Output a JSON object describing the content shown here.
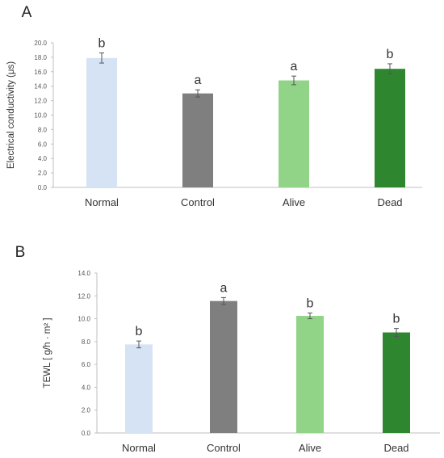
{
  "chart_data": [
    {
      "type": "bar",
      "panel": "A",
      "categories": [
        "Normal",
        "Control",
        "Alive",
        "Dead"
      ],
      "values": [
        17.9,
        13.0,
        14.8,
        16.4
      ],
      "errors": [
        0.7,
        0.5,
        0.6,
        0.7
      ],
      "significance": [
        "b",
        "a",
        "a",
        "b"
      ],
      "colors": [
        "#d5e3f5",
        "#7f7f7f",
        "#91d488",
        "#2e862f"
      ],
      "ylabel": "Electrical conductivity (μs)",
      "ylim": [
        0,
        20
      ],
      "yticks": [
        "0.0",
        "2.0",
        "4.0",
        "6.0",
        "8.0",
        "10.0",
        "12.0",
        "14.0",
        "16.0",
        "18.0",
        "20.0"
      ],
      "grid": false
    },
    {
      "type": "bar",
      "panel": "B",
      "categories": [
        "Normal",
        "Control",
        "Alive",
        "Dead"
      ],
      "values": [
        7.75,
        11.55,
        10.25,
        8.8
      ],
      "errors": [
        0.3,
        0.3,
        0.25,
        0.35
      ],
      "significance": [
        "b",
        "a",
        "b",
        "b"
      ],
      "colors": [
        "#d5e3f5",
        "#7f7f7f",
        "#91d488",
        "#2e862f"
      ],
      "ylabel": "TEWL [ g/h · m² ]",
      "ylim": [
        0,
        14
      ],
      "yticks": [
        "0.0",
        "2.0",
        "4.0",
        "6.0",
        "8.0",
        "10.0",
        "12.0",
        "14.0"
      ],
      "grid": false
    }
  ]
}
